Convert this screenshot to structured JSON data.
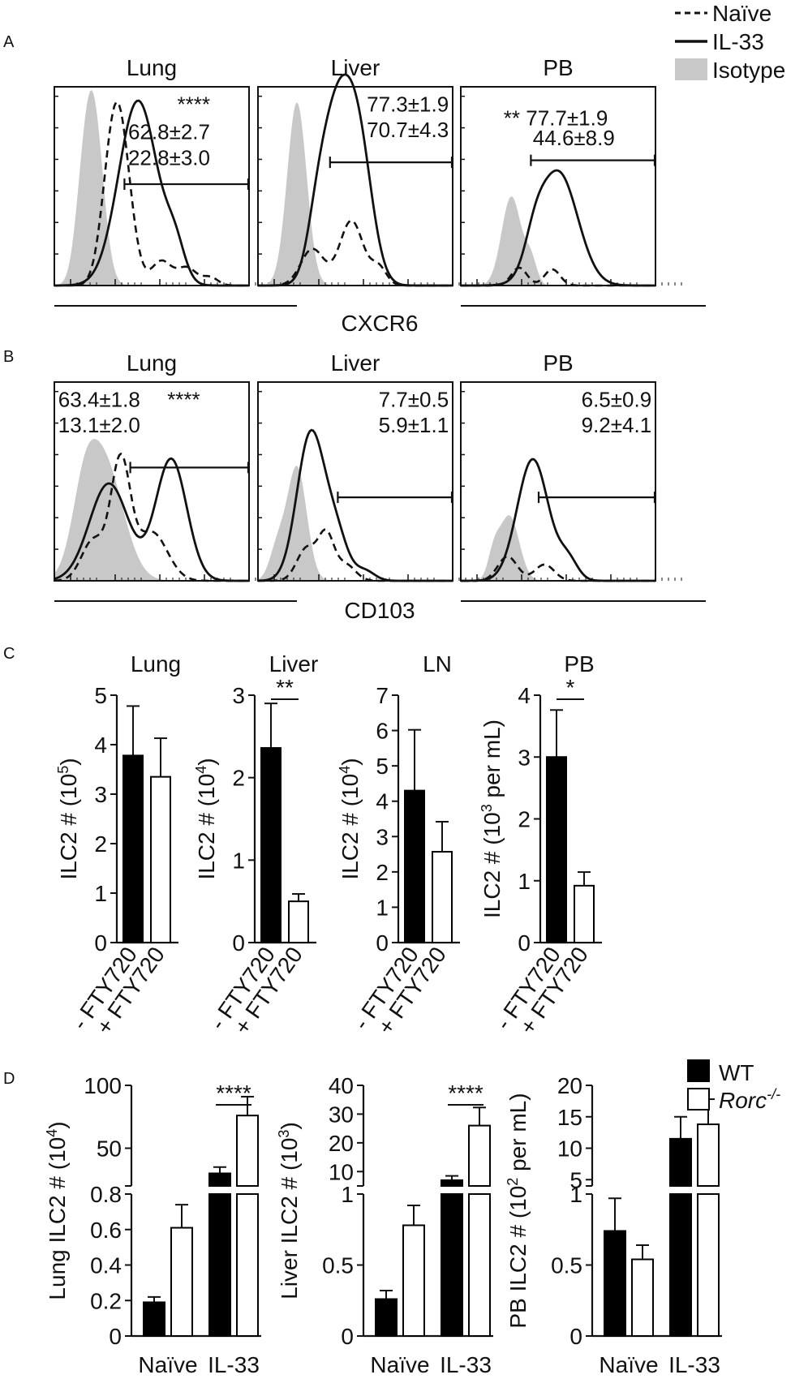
{
  "panels": {
    "A": "A",
    "B": "B",
    "C": "C",
    "D": "D"
  },
  "legend_top": {
    "naive": "Naïve",
    "il33": "IL-33",
    "isotype": "Isotype"
  },
  "legend_d": {
    "wt": "WT",
    "rorc_base": "Rorc",
    "rorc_sup": "-/-"
  },
  "chart_data": [
    {
      "panel": "A",
      "type": "area",
      "xlabel": "CXCR6",
      "series_names": [
        "Naïve",
        "IL-33",
        "Isotype"
      ],
      "colors": {
        "naive": "#111111",
        "il33": "#111111",
        "isotype": "#c8c8c8"
      },
      "histograms": [
        {
          "title": "Lung",
          "annotations": [
            "****",
            "62.8±2.7",
            "22.8±3.0"
          ]
        },
        {
          "title": "Liver",
          "annotations": [
            "77.3±1.9",
            "70.7±4.3"
          ]
        },
        {
          "title": "PB",
          "annotations": [
            "** 77.7±1.9",
            "44.6±8.9"
          ]
        }
      ]
    },
    {
      "panel": "B",
      "type": "area",
      "xlabel": "CD103",
      "series_names": [
        "Naïve",
        "IL-33",
        "Isotype"
      ],
      "histograms": [
        {
          "title": "Lung",
          "annotations": [
            "63.4±1.8",
            "13.1±2.0",
            "****"
          ]
        },
        {
          "title": "Liver",
          "annotations": [
            "7.7±0.5",
            "5.9±1.1"
          ]
        },
        {
          "title": "PB",
          "annotations": [
            "6.5±0.9",
            "9.2±4.1"
          ]
        }
      ]
    },
    {
      "panel": "C",
      "type": "bar",
      "categories": [
        "- FTY720",
        "+ FTY720"
      ],
      "plots": [
        {
          "title": "Lung",
          "ylabel": "ILC2 # (10^5)",
          "ylabel_base": "ILC2 # (10",
          "ylabel_exp": "5",
          "ylabel_tail": ")",
          "ylim": [
            0,
            5
          ],
          "ticks": [
            "0",
            "1",
            "2",
            "3",
            "4",
            "5"
          ],
          "values": [
            3.78,
            3.35
          ],
          "errors": [
            1.0,
            0.78
          ],
          "significance": ""
        },
        {
          "title": "Liver",
          "ylabel": "ILC2 # (10^4)",
          "ylabel_base": "ILC2 # (10",
          "ylabel_exp": "4",
          "ylabel_tail": ")",
          "ylim": [
            0,
            3
          ],
          "ticks": [
            "0",
            "1",
            "2",
            "3"
          ],
          "values": [
            2.36,
            0.5
          ],
          "errors": [
            0.54,
            0.09
          ],
          "significance": "**"
        },
        {
          "title": "LN",
          "ylabel": "ILC2 # (10^4)",
          "ylabel_base": "ILC2 # (10",
          "ylabel_exp": "4",
          "ylabel_tail": ")",
          "ylim": [
            0,
            7
          ],
          "ticks": [
            "0",
            "1",
            "2",
            "3",
            "4",
            "5",
            "6",
            "7"
          ],
          "values": [
            4.3,
            2.57
          ],
          "errors": [
            1.72,
            0.85
          ],
          "significance": ""
        },
        {
          "title": "PB",
          "ylabel": "ILC2 # (10^3 per mL)",
          "ylabel_base": "ILC2 # (10",
          "ylabel_exp": "3",
          "ylabel_tail": " per mL)",
          "ylim": [
            0,
            4
          ],
          "ticks": [
            "0",
            "1",
            "2",
            "3",
            "4"
          ],
          "values": [
            3.0,
            0.92
          ],
          "errors": [
            0.76,
            0.22
          ],
          "significance": "*"
        }
      ]
    },
    {
      "panel": "D",
      "type": "bar",
      "categories": [
        "Naïve",
        "IL-33"
      ],
      "series": [
        {
          "name": "WT",
          "color": "#000000"
        },
        {
          "name": "Rorc-/-",
          "color": "#ffffff"
        }
      ],
      "plots": [
        {
          "ylabel": "Lung ILC2 # (10^4)",
          "ylabel_base": "Lung ILC2 # (10",
          "ylabel_exp": "4",
          "ylabel_tail": ")",
          "upper_ylim": [
            20,
            100
          ],
          "upper_ticks": [
            50,
            100
          ],
          "upper_tick_labels": [
            "50",
            "100"
          ],
          "lower_ylim": [
            0,
            0.8
          ],
          "lower_ticks": [
            0,
            0.2,
            0.4,
            0.6,
            0.8
          ],
          "lower_tick_labels": [
            "0",
            "0.2",
            "0.4",
            "0.6",
            "0.8"
          ],
          "wt": [
            0.19,
            30
          ],
          "rorc": [
            0.61,
            76
          ],
          "wt_err": [
            0.03,
            5
          ],
          "rorc_err": [
            0.13,
            15
          ],
          "significance": "****"
        },
        {
          "ylabel": "Liver ILC2 # (10^3)",
          "ylabel_base": "Liver ILC2 # (10",
          "ylabel_exp": "3",
          "ylabel_tail": ")",
          "upper_ylim": [
            5,
            40
          ],
          "upper_ticks": [
            10,
            20,
            30,
            40
          ],
          "upper_tick_labels": [
            "10",
            "20",
            "30",
            "40"
          ],
          "lower_ylim": [
            0,
            1
          ],
          "lower_ticks": [
            0,
            0.5,
            1
          ],
          "lower_tick_labels": [
            "0",
            "0.5",
            "1"
          ],
          "wt": [
            0.26,
            7
          ],
          "rorc": [
            0.78,
            26
          ],
          "wt_err": [
            0.06,
            1.5
          ],
          "rorc_err": [
            0.14,
            6.3
          ],
          "significance": "****"
        },
        {
          "ylabel": "PB ILC2 # (10^2 per mL)",
          "ylabel_base": "PB ILC2 # (10",
          "ylabel_exp": "2",
          "ylabel_tail": " per mL)",
          "upper_ylim": [
            4,
            20
          ],
          "upper_ticks": [
            5,
            10,
            15,
            20
          ],
          "upper_tick_labels": [
            "5",
            "10",
            "15",
            "20"
          ],
          "lower_ylim": [
            0,
            1
          ],
          "lower_ticks": [
            0,
            0.5,
            1
          ],
          "lower_tick_labels": [
            "0",
            "0.5",
            "1"
          ],
          "wt": [
            0.74,
            11.5
          ],
          "rorc": [
            0.54,
            13.8
          ],
          "wt_err": [
            0.23,
            3.5
          ],
          "rorc_err": [
            0.1,
            4
          ],
          "significance": ""
        }
      ]
    }
  ]
}
